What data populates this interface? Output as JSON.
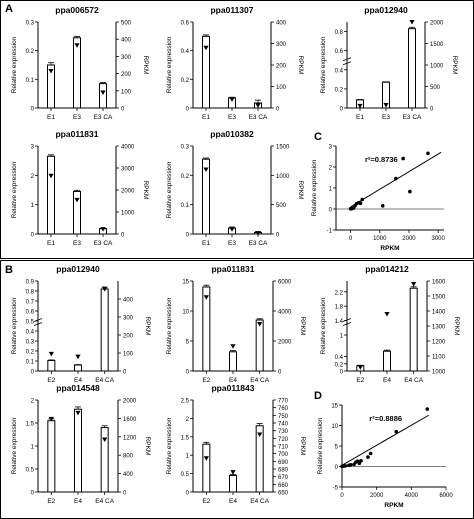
{
  "panels": {
    "a": "A",
    "b": "B",
    "c": "C",
    "d": "D"
  },
  "chart_data": [
    {
      "type": "bar",
      "panel": "A",
      "title": "ppa006572",
      "categories": [
        "E1",
        "E3",
        "E3 CA"
      ],
      "values": [
        0.15,
        0.245,
        0.085
      ],
      "errors": [
        0.008,
        0.005,
        0.004
      ],
      "rpkm": [
        215,
        365,
        90
      ],
      "ylabel": "Relative expression",
      "ylim": [
        0,
        0.3
      ],
      "yticks": [
        0,
        0.1,
        0.2,
        0.3
      ],
      "y2label": "RPKM",
      "y2lim": [
        0,
        500
      ],
      "y2ticks": [
        0,
        100,
        200,
        300,
        400,
        500
      ]
    },
    {
      "type": "bar",
      "panel": "A",
      "title": "ppa011307",
      "categories": [
        "E1",
        "E3",
        "E3 CA"
      ],
      "values": [
        0.5,
        0.07,
        0.035
      ],
      "errors": [
        0.01,
        0.005,
        0.02
      ],
      "rpkm": [
        280,
        40,
        12
      ],
      "ylabel": "Relative expression",
      "ylim": [
        0,
        0.6
      ],
      "yticks": [
        0,
        0.2,
        0.4,
        0.6
      ],
      "y2label": "RPKM",
      "y2lim": [
        0,
        400
      ],
      "y2ticks": [
        0,
        100,
        200,
        300,
        400
      ]
    },
    {
      "type": "bar",
      "panel": "A",
      "title": "ppa012940",
      "categories": [
        "E1",
        "E3",
        "E3 CA"
      ],
      "values": [
        0.085,
        0.27,
        0.83
      ],
      "errors": [
        0.004,
        0.004,
        0.015
      ],
      "rpkm": [
        50,
        70,
        2030
      ],
      "ylabel": "Relative expression",
      "ylim": [
        0,
        0.9
      ],
      "yticks": [
        0,
        0.2,
        0.4,
        0.6,
        0.8
      ],
      "y2label": "RPKM",
      "y2lim": [
        0,
        2000
      ],
      "y2ticks": [
        0,
        500,
        1000,
        1500,
        2000
      ],
      "break": true
    },
    {
      "type": "bar",
      "panel": "A",
      "title": "ppa011831",
      "categories": [
        "E1",
        "E3",
        "E3 CA"
      ],
      "values": [
        2.65,
        1.45,
        0.18
      ],
      "errors": [
        0.05,
        0.04,
        0.01
      ],
      "rpkm": [
        2650,
        1550,
        220
      ],
      "ylabel": "Relative expression",
      "ylim": [
        0,
        3
      ],
      "yticks": [
        0,
        1,
        2,
        3
      ],
      "y2label": "RPKM",
      "y2lim": [
        0,
        4000
      ],
      "y2ticks": [
        0,
        1000,
        2000,
        3000,
        4000
      ]
    },
    {
      "type": "bar",
      "panel": "A",
      "title": "ppa010382",
      "categories": [
        "E1",
        "E3",
        "E3 CA"
      ],
      "values": [
        0.255,
        0.02,
        0.005
      ],
      "errors": [
        0.004,
        0.004,
        0.003
      ],
      "rpkm": [
        1100,
        80,
        15
      ],
      "ylabel": "Relative expression",
      "ylim": [
        0,
        0.3
      ],
      "yticks": [
        0,
        0.1,
        0.2,
        0.3
      ],
      "y2label": "RPKM",
      "y2lim": [
        0,
        1500
      ],
      "y2ticks": [
        0,
        500,
        1000,
        1500
      ]
    },
    {
      "type": "scatter",
      "panel": "C",
      "points": [
        [
          0,
          0.01
        ],
        [
          40,
          0.02
        ],
        [
          100,
          0.05
        ],
        [
          150,
          0.15
        ],
        [
          200,
          0.25
        ],
        [
          280,
          0.3
        ],
        [
          340,
          0.27
        ],
        [
          400,
          0.45
        ],
        [
          1100,
          0.15
        ],
        [
          1550,
          1.45
        ],
        [
          2030,
          0.83
        ],
        [
          2650,
          2.65
        ],
        [
          1800,
          2.4
        ]
      ],
      "fit_line": [
        [
          0,
          0.1
        ],
        [
          3100,
          2.7
        ]
      ],
      "annotation": "r²=0.8736",
      "xlabel": "RPKM",
      "ylabel": "Relative expression",
      "xlim": [
        -500,
        3200
      ],
      "ylim": [
        -1,
        3
      ],
      "xticks": [
        0,
        1000,
        2000,
        3000
      ],
      "yticks": [
        -1,
        0,
        1,
        2,
        3
      ]
    },
    {
      "type": "bar",
      "panel": "B",
      "title": "ppa012940",
      "categories": [
        "E2",
        "E4",
        "E4 CA"
      ],
      "values": [
        0.105,
        0.06,
        0.82
      ],
      "errors": [
        0.006,
        0.004,
        0.02
      ],
      "rpkm": [
        95,
        80,
        455
      ],
      "ylabel": "Relative expression",
      "ylim": [
        0,
        0.9
      ],
      "yticks": [
        0,
        0.1,
        0.2,
        0.3,
        0.4,
        0.5,
        0.6,
        0.7,
        0.8,
        0.9
      ],
      "y2label": "RPKM",
      "y2lim": [
        0,
        500
      ],
      "y2ticks": [
        0,
        100,
        200,
        300,
        400
      ],
      "break": true
    },
    {
      "type": "bar",
      "panel": "B",
      "title": "ppa011831",
      "categories": [
        "E2",
        "E4",
        "E4 CA"
      ],
      "values": [
        14,
        3.2,
        8.5
      ],
      "errors": [
        0.3,
        0.2,
        0.2
      ],
      "rpkm": [
        4920,
        1650,
        3130
      ],
      "ylabel": "Relative expression",
      "ylim": [
        0,
        15
      ],
      "yticks": [
        0,
        5,
        10,
        15
      ],
      "y2label": "RPKM",
      "y2lim": [
        0,
        6000
      ],
      "y2ticks": [
        0,
        2000,
        4000,
        6000
      ]
    },
    {
      "type": "bar",
      "panel": "B",
      "title": "ppa014212",
      "categories": [
        "E2",
        "E4",
        "E4 CA"
      ],
      "values": [
        0.15,
        0.55,
        2.3
      ],
      "errors": [
        0.01,
        0.03,
        0.04
      ],
      "rpkm": [
        1025,
        1380,
        1580
      ],
      "ylabel": "Relative expression",
      "ylim": [
        0,
        2.5
      ],
      "yticks": [
        0,
        0.2,
        0.4,
        1.0,
        1.4,
        1.8,
        2.2
      ],
      "y2label": "RPKM",
      "y2lim": [
        1000,
        1600
      ],
      "y2ticks": [
        1000,
        1100,
        1200,
        1300,
        1400,
        1500,
        1600
      ],
      "break": true
    },
    {
      "type": "bar",
      "panel": "B",
      "title": "ppa014548",
      "categories": [
        "E2",
        "E4",
        "E4 CA"
      ],
      "values": [
        1.55,
        1.8,
        1.4
      ],
      "errors": [
        0.04,
        0.05,
        0.04
      ],
      "rpkm": [
        1590,
        1720,
        1140
      ],
      "ylabel": "Relative expression",
      "ylim": [
        0,
        2
      ],
      "yticks": [
        0,
        0.5,
        1.0,
        1.5,
        2.0
      ],
      "y2label": "RPKM",
      "y2lim": [
        0,
        2000
      ],
      "y2ticks": [
        0,
        400,
        800,
        1200,
        1600,
        2000
      ],
      "y2ticklabels": [
        "0",
        "400",
        "800",
        "1200",
        "1600",
        "2000"
      ]
    },
    {
      "type": "bar",
      "panel": "B",
      "title": "ppa011843",
      "categories": [
        "E2",
        "E4",
        "E4 CA"
      ],
      "values": [
        1.3,
        0.45,
        1.8
      ],
      "errors": [
        0.05,
        0.03,
        0.06
      ],
      "rpkm": [
        694,
        676,
        725
      ],
      "ylabel": "Relative expression",
      "ylim": [
        0,
        2.5
      ],
      "yticks": [
        0,
        0.5,
        1.0,
        1.5,
        2.0,
        2.5
      ],
      "y2label": "RPKM",
      "y2lim": [
        650,
        770
      ],
      "y2ticks": [
        650,
        660,
        670,
        680,
        690,
        700,
        710,
        720,
        730,
        740,
        750,
        760,
        770
      ]
    },
    {
      "type": "scatter",
      "panel": "D",
      "points": [
        [
          0,
          0.02
        ],
        [
          100,
          0.1
        ],
        [
          200,
          0.15
        ],
        [
          400,
          0.3
        ],
        [
          500,
          0.4
        ],
        [
          700,
          0.55
        ],
        [
          800,
          1.1
        ],
        [
          900,
          1.3
        ],
        [
          1100,
          1.4
        ],
        [
          1650,
          3.2
        ],
        [
          3130,
          8.5
        ],
        [
          4920,
          14
        ],
        [
          1500,
          2.3
        ],
        [
          1000,
          0.8
        ]
      ],
      "fit_line": [
        [
          0,
          0.3
        ],
        [
          5000,
          12.5
        ]
      ],
      "annotation": "r²=0.8886",
      "xlabel": "RPKM",
      "ylabel": "Relative expression",
      "xlim": [
        0,
        6000
      ],
      "ylim": [
        -5,
        15
      ],
      "xticks": [
        0,
        2000,
        4000,
        6000
      ],
      "yticks": [
        -5,
        0,
        5,
        10,
        15
      ]
    }
  ]
}
